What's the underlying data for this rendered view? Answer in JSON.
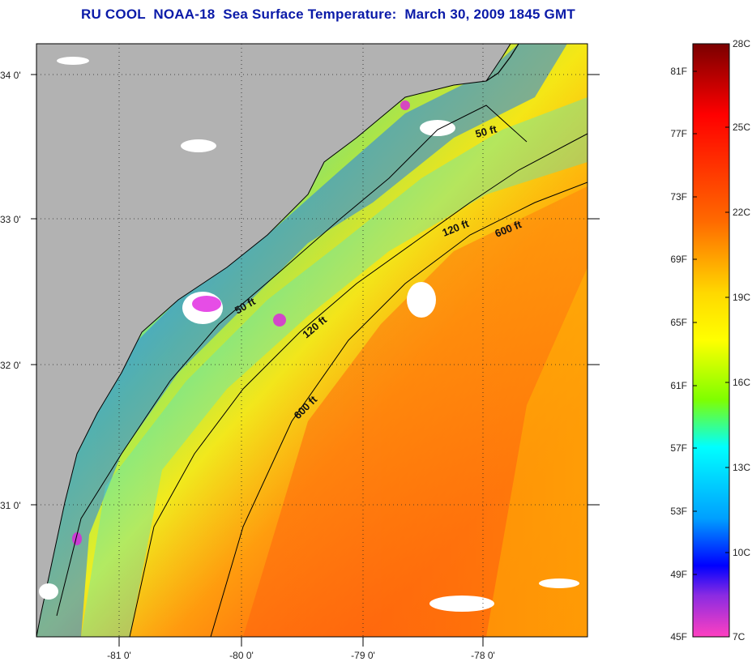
{
  "title": "RU COOL  NOAA-18  Sea Surface Temperature:  March 30, 2009 1845 GMT",
  "map": {
    "lat_labels": [
      "34 0'",
      "33 0'",
      "32 0'",
      "31 0'"
    ],
    "lon_labels": [
      "-81 0'",
      "-80 0'",
      "-79 0'",
      "-78 0'"
    ],
    "depth_contours": [
      "50 ft",
      "50 ft",
      "120 ft",
      "120 ft",
      "600 ft",
      "600 ft"
    ],
    "colors": {
      "land": "#b2b2b2",
      "cloud": "#ffffff",
      "coastline": "#000000"
    }
  },
  "colorbar": {
    "fahrenheit_labels": [
      "81F",
      "77F",
      "73F",
      "69F",
      "65F",
      "61F",
      "57F",
      "53F",
      "49F",
      "45F"
    ],
    "celsius_labels": [
      "28C",
      "25C",
      "22C",
      "19C",
      "16C",
      "13C",
      "10C",
      "7C"
    ],
    "gradient": [
      "#7a0000",
      "#ff0000",
      "#ff6a00",
      "#ffd800",
      "#ffff00",
      "#7fff00",
      "#00ffff",
      "#00a0ff",
      "#0000ff",
      "#8a2be2",
      "#ff40c0"
    ]
  }
}
